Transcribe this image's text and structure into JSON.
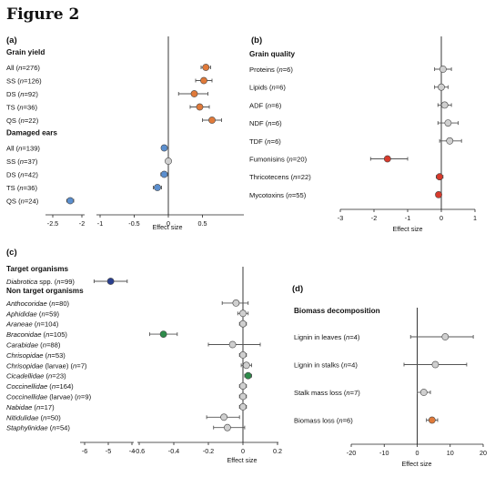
{
  "figure_title": "Figure 2",
  "colors": {
    "orange": "#e07a3a",
    "blue": "#5b8fcf",
    "grey": "#cfcfcf",
    "red": "#d73a2c",
    "navy": "#2a3f8f",
    "green": "#2e8b4a",
    "line": "#222222",
    "err": "#555555"
  },
  "chart_data": [
    {
      "panel": "(a)",
      "type": "scatter",
      "subtype": "forest",
      "xlabel": "Effect size",
      "xlim": [
        -2.5,
        1.0
      ],
      "ticks": [
        "-2.5",
        "-2",
        "-1",
        "-0.5",
        "0",
        "0.5"
      ],
      "axis_break": true,
      "groups": [
        {
          "name": "Grain yield",
          "rows": [
            {
              "label": "All (n=276)",
              "value": 0.55,
              "ci": [
                0.48,
                0.62
              ],
              "color": "orange"
            },
            {
              "label": "SS (n=126)",
              "value": 0.52,
              "ci": [
                0.4,
                0.64
              ],
              "color": "orange"
            },
            {
              "label": "DS (n=92)",
              "value": 0.38,
              "ci": [
                0.15,
                0.58
              ],
              "color": "orange"
            },
            {
              "label": "TS (n=36)",
              "value": 0.46,
              "ci": [
                0.32,
                0.6
              ],
              "color": "orange"
            },
            {
              "label": "QS (n=22)",
              "value": 0.64,
              "ci": [
                0.5,
                0.78
              ],
              "color": "orange"
            }
          ]
        },
        {
          "name": "Damaged ears",
          "rows": [
            {
              "label": "All (n=139)",
              "value": -0.06,
              "ci": [
                -0.09,
                -0.03
              ],
              "color": "blue"
            },
            {
              "label": "SS (n=37)",
              "value": 0.0,
              "ci": [
                -0.04,
                0.04
              ],
              "color": "grey"
            },
            {
              "label": "DS (n=42)",
              "value": -0.06,
              "ci": [
                -0.11,
                -0.01
              ],
              "color": "blue"
            },
            {
              "label": "TS (n=36)",
              "value": -0.16,
              "ci": [
                -0.22,
                -0.1
              ],
              "color": "blue"
            },
            {
              "label": "QS (n=24)",
              "value": -2.2,
              "ci": [
                -2.26,
                -2.14
              ],
              "color": "blue"
            }
          ]
        }
      ]
    },
    {
      "panel": "(b)",
      "type": "scatter",
      "subtype": "forest",
      "xlabel": "Effect size",
      "xlim": [
        -3,
        1
      ],
      "ticks": [
        "-3",
        "-2",
        "-1",
        "0",
        "1"
      ],
      "groups": [
        {
          "name": "Grain quality",
          "rows": [
            {
              "label": "Proteins (n=6)",
              "value": 0.05,
              "ci": [
                -0.2,
                0.3
              ],
              "color": "grey"
            },
            {
              "label": "Lipids (n=6)",
              "value": 0.0,
              "ci": [
                -0.2,
                0.2
              ],
              "color": "grey"
            },
            {
              "label": "ADF (n=6)",
              "value": 0.1,
              "ci": [
                -0.1,
                0.3
              ],
              "color": "grey"
            },
            {
              "label": "NDF (n=6)",
              "value": 0.2,
              "ci": [
                -0.1,
                0.5
              ],
              "color": "grey"
            },
            {
              "label": "TDF (n=6)",
              "value": 0.25,
              "ci": [
                -0.05,
                0.6
              ],
              "color": "grey"
            },
            {
              "label": "Fumonisins (n=20)",
              "value": -1.6,
              "ci": [
                -2.1,
                -1.0
              ],
              "color": "red"
            },
            {
              "label": "Thricotecens (n=22)",
              "value": -0.05,
              "ci": [
                -0.15,
                0.05
              ],
              "color": "red"
            },
            {
              "label": "Mycotoxins (n=55)",
              "value": -0.08,
              "ci": [
                -0.15,
                0.0
              ],
              "color": "red"
            }
          ]
        }
      ]
    },
    {
      "panel": "(c)",
      "type": "scatter",
      "subtype": "forest",
      "xlabel": "Effect size",
      "xlim": [
        -0.6,
        0.2
      ],
      "ticks": [
        "-6",
        "-5",
        "-4",
        "-0.6",
        "-0.4",
        "-0.2",
        "0",
        "0.2"
      ],
      "axis_break": true,
      "groups": [
        {
          "name": "Target organisms",
          "rows": [
            {
              "label": "Diabrotica spp. (n=99)",
              "value": -4.9,
              "ci": [
                -5.6,
                -4.2
              ],
              "color": "navy"
            }
          ]
        },
        {
          "name": "Non target organisms",
          "rows": [
            {
              "label": "Anthocoridae (n=80)",
              "value": -0.04,
              "ci": [
                -0.12,
                0.03
              ],
              "color": "grey"
            },
            {
              "label": "Aphididae (n=59)",
              "value": 0.0,
              "ci": [
                -0.03,
                0.03
              ],
              "color": "grey"
            },
            {
              "label": "Araneae (n=104)",
              "value": 0.0,
              "ci": [
                -0.02,
                0.02
              ],
              "color": "grey"
            },
            {
              "label": "Braconidae (n=105)",
              "value": -0.46,
              "ci": [
                -0.54,
                -0.38
              ],
              "color": "green"
            },
            {
              "label": "Carabidae (n=88)",
              "value": -0.06,
              "ci": [
                -0.2,
                0.1
              ],
              "color": "grey"
            },
            {
              "label": "Chrisopidae (n=53)",
              "value": 0.0,
              "ci": [
                -0.02,
                0.02
              ],
              "color": "grey"
            },
            {
              "label": "Chrisopidae (larvae) (n=7)",
              "value": 0.02,
              "ci": [
                -0.01,
                0.05
              ],
              "color": "grey"
            },
            {
              "label": "Cicadellidae (n=23)",
              "value": 0.03,
              "ci": [
                0.01,
                0.05
              ],
              "color": "green"
            },
            {
              "label": "Coccinellidae (n=164)",
              "value": 0.0,
              "ci": [
                -0.02,
                0.02
              ],
              "color": "grey"
            },
            {
              "label": "Coccinellidae (larvae) (n=9)",
              "value": 0.0,
              "ci": [
                -0.02,
                0.02
              ],
              "color": "grey"
            },
            {
              "label": "Nabidae (n=17)",
              "value": 0.0,
              "ci": [
                -0.02,
                0.02
              ],
              "color": "grey"
            },
            {
              "label": "Nitidulidae (n=50)",
              "value": -0.11,
              "ci": [
                -0.21,
                -0.02
              ],
              "color": "grey"
            },
            {
              "label": "Staphylinidae (n=54)",
              "value": -0.09,
              "ci": [
                -0.17,
                0.01
              ],
              "color": "grey"
            }
          ]
        }
      ]
    },
    {
      "panel": "(d)",
      "type": "scatter",
      "subtype": "forest",
      "xlabel": "Effect size",
      "xlim": [
        -20,
        20
      ],
      "ticks": [
        "-20",
        "-10",
        "0",
        "10",
        "20"
      ],
      "groups": [
        {
          "name": "Biomass decomposition",
          "rows": [
            {
              "label": "Lignin in leaves (n=4)",
              "value": 8.5,
              "ci": [
                -2,
                17
              ],
              "color": "grey"
            },
            {
              "label": "Lignin in stalks (n=4)",
              "value": 5.5,
              "ci": [
                -4,
                15
              ],
              "color": "grey"
            },
            {
              "label": "Stalk mass loss (n=7)",
              "value": 2.0,
              "ci": [
                0,
                4
              ],
              "color": "grey"
            },
            {
              "label": "Biomass loss (n=6)",
              "value": 4.5,
              "ci": [
                2.8,
                6.2
              ],
              "color": "orange"
            }
          ]
        }
      ]
    }
  ]
}
